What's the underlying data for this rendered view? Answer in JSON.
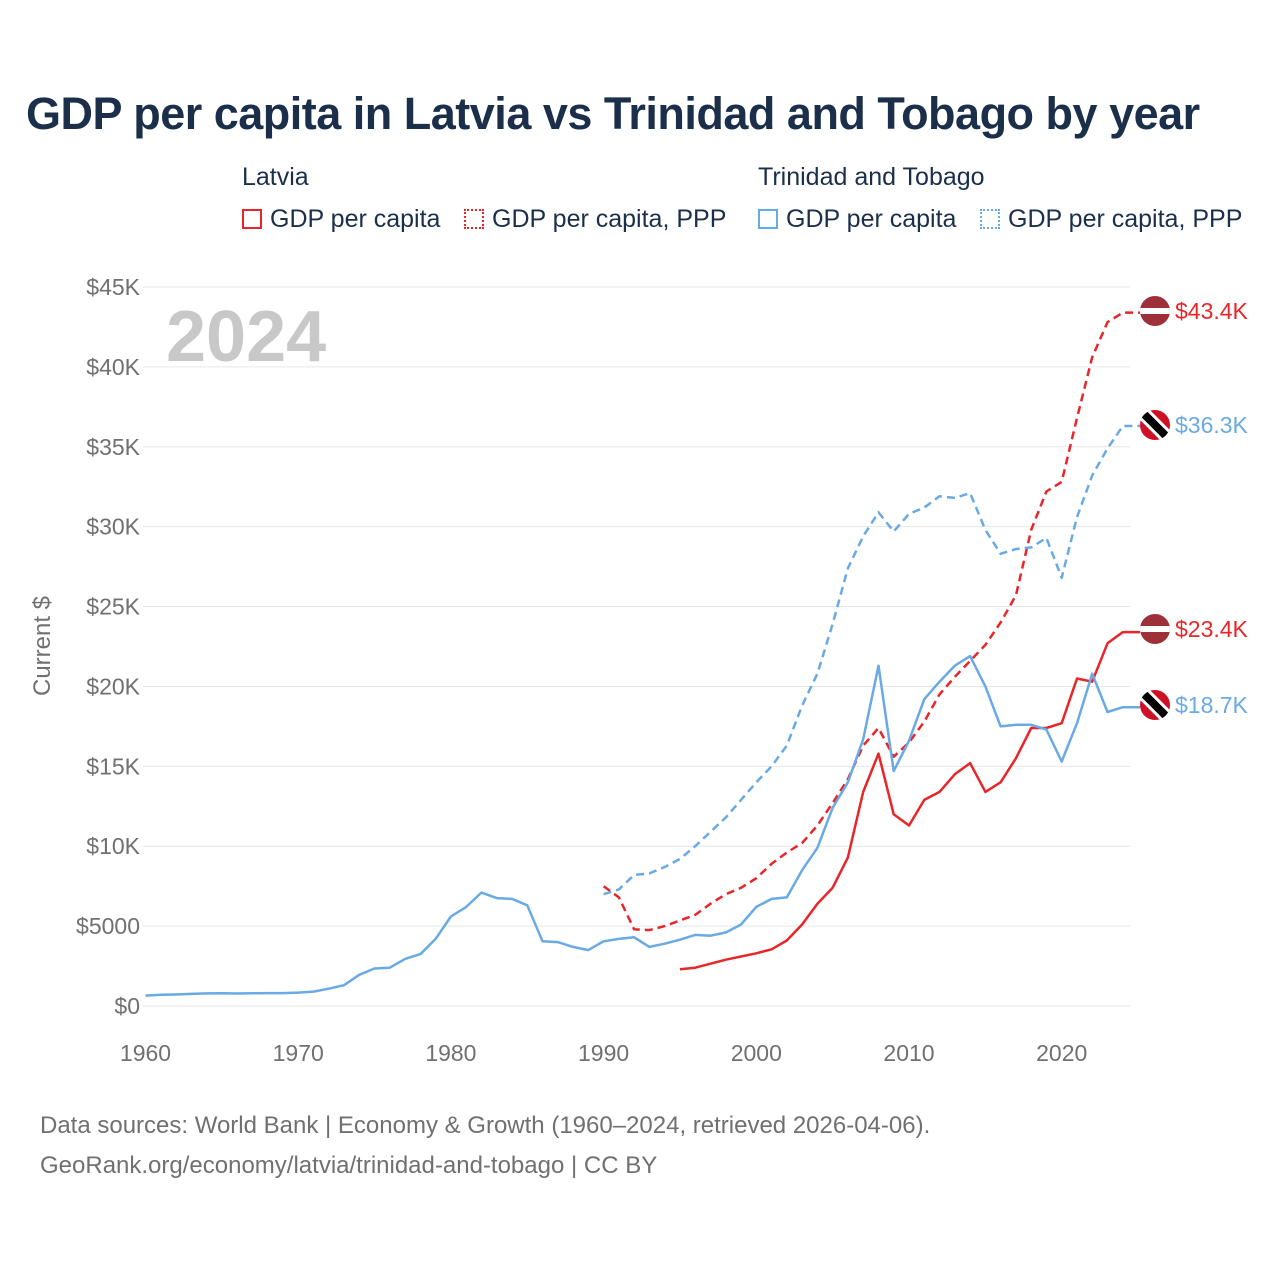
{
  "title": "GDP per capita in Latvia vs Trinidad and Tobago by year",
  "legend": {
    "groups": [
      {
        "name": "Latvia",
        "items": [
          "GDP per capita",
          "GDP per capita, PPP"
        ]
      },
      {
        "name": "Trinidad and Tobago",
        "items": [
          "GDP per capita",
          "GDP per capita, PPP"
        ]
      }
    ]
  },
  "colors": {
    "latvia": "#e8262a",
    "trinidad": "#6aaae4",
    "grid": "#e6e6e6",
    "axis_text": "#707070",
    "year_watermark": "#c8c8c8"
  },
  "footer": {
    "line1": "Data sources: World Bank | Economy & Growth (1960–2024, retrieved 2026-04-06).",
    "line2": "GeoRank.org/economy/latvia/trinidad-and-tobago | CC BY"
  },
  "chart_data": {
    "type": "line",
    "title": "GDP per capita in Latvia vs Trinidad and Tobago by year",
    "year_label": "2024",
    "xlabel": "",
    "ylabel": "Current $",
    "xlim": [
      1960,
      2024
    ],
    "ylim": [
      0,
      45000
    ],
    "x_ticks": [
      "1960",
      "1970",
      "1980",
      "1990",
      "2000",
      "2010",
      "2020"
    ],
    "y_ticks": [
      {
        "value": 0,
        "label": "$0"
      },
      {
        "value": 5000,
        "label": "$5000"
      },
      {
        "value": 10000,
        "label": "$10K"
      },
      {
        "value": 15000,
        "label": "$15K"
      },
      {
        "value": 20000,
        "label": "$20K"
      },
      {
        "value": 25000,
        "label": "$25K"
      },
      {
        "value": 30000,
        "label": "$30K"
      },
      {
        "value": 35000,
        "label": "$35K"
      },
      {
        "value": 40000,
        "label": "$40K"
      },
      {
        "value": 45000,
        "label": "$45K"
      }
    ],
    "series": [
      {
        "name": "Latvia — GDP per capita",
        "country": "latvia",
        "dashed": false,
        "end_label": "$23.4K",
        "x": [
          1995,
          1996,
          1997,
          1998,
          1999,
          2000,
          2001,
          2002,
          2003,
          2004,
          2005,
          2006,
          2007,
          2008,
          2009,
          2010,
          2011,
          2012,
          2013,
          2014,
          2015,
          2016,
          2017,
          2018,
          2019,
          2020,
          2021,
          2022,
          2023,
          2024
        ],
        "y": [
          2300,
          2400,
          2650,
          2900,
          3100,
          3300,
          3550,
          4100,
          5100,
          6400,
          7400,
          9300,
          13400,
          15800,
          12000,
          11300,
          12900,
          13400,
          14500,
          15200,
          13400,
          14000,
          15500,
          17400,
          17400,
          17700,
          20500,
          20300,
          22700,
          23400
        ]
      },
      {
        "name": "Latvia — GDP per capita, PPP",
        "country": "latvia",
        "dashed": true,
        "end_label": "$43.4K",
        "x": [
          1990,
          1991,
          1992,
          1993,
          1994,
          1995,
          1996,
          1997,
          1998,
          1999,
          2000,
          2001,
          2002,
          2003,
          2004,
          2005,
          2006,
          2007,
          2008,
          2009,
          2010,
          2011,
          2012,
          2013,
          2014,
          2015,
          2016,
          2017,
          2018,
          2019,
          2020,
          2021,
          2022,
          2023,
          2024
        ],
        "y": [
          7500,
          6800,
          4800,
          4750,
          5000,
          5350,
          5700,
          6400,
          7000,
          7400,
          8000,
          8900,
          9600,
          10200,
          11300,
          12700,
          14200,
          16300,
          17400,
          15600,
          16500,
          17800,
          19500,
          20600,
          21600,
          22600,
          24000,
          25700,
          29800,
          32200,
          32800,
          36800,
          40600,
          42800,
          43400
        ]
      },
      {
        "name": "Trinidad and Tobago — GDP per capita",
        "country": "trinidad",
        "dashed": false,
        "end_label": "$18.7K",
        "x": [
          1960,
          1961,
          1962,
          1963,
          1964,
          1965,
          1966,
          1967,
          1968,
          1969,
          1970,
          1971,
          1972,
          1973,
          1974,
          1975,
          1976,
          1977,
          1978,
          1979,
          1980,
          1981,
          1982,
          1983,
          1984,
          1985,
          1986,
          1987,
          1988,
          1989,
          1990,
          1991,
          1992,
          1993,
          1994,
          1995,
          1996,
          1997,
          1998,
          1999,
          2000,
          2001,
          2002,
          2003,
          2004,
          2005,
          2006,
          2007,
          2008,
          2009,
          2010,
          2011,
          2012,
          2013,
          2014,
          2015,
          2016,
          2017,
          2018,
          2019,
          2020,
          2021,
          2022,
          2023,
          2024
        ],
        "y": [
          650,
          700,
          720,
          760,
          790,
          800,
          780,
          800,
          810,
          810,
          840,
          900,
          1080,
          1300,
          1950,
          2350,
          2400,
          2950,
          3250,
          4200,
          5600,
          6200,
          7100,
          6750,
          6700,
          6300,
          4050,
          4000,
          3700,
          3500,
          4050,
          4200,
          4300,
          3700,
          3900,
          4150,
          4450,
          4400,
          4600,
          5100,
          6200,
          6700,
          6800,
          8500,
          9900,
          12400,
          14000,
          16700,
          21300,
          14700,
          16600,
          19200,
          20300,
          21300,
          21900,
          20000,
          17500,
          17600,
          17600,
          17300,
          15300,
          17700,
          20800,
          18400,
          18700
        ]
      },
      {
        "name": "Trinidad and Tobago — GDP per capita, PPP",
        "country": "trinidad",
        "dashed": true,
        "end_label": "$36.3K",
        "x": [
          1990,
          1991,
          1992,
          1993,
          1994,
          1995,
          1996,
          1997,
          1998,
          1999,
          2000,
          2001,
          2002,
          2003,
          2004,
          2005,
          2006,
          2007,
          2008,
          2009,
          2010,
          2011,
          2012,
          2013,
          2014,
          2015,
          2016,
          2017,
          2018,
          2019,
          2020,
          2021,
          2022,
          2023,
          2024
        ],
        "y": [
          7000,
          7300,
          8200,
          8300,
          8700,
          9200,
          10000,
          10900,
          11800,
          12900,
          14000,
          15000,
          16300,
          18800,
          20800,
          23900,
          27400,
          29400,
          30900,
          29700,
          30800,
          31200,
          31900,
          31800,
          32100,
          29800,
          28300,
          28600,
          28700,
          29300,
          26800,
          30600,
          33200,
          34900,
          36300
        ]
      }
    ]
  }
}
